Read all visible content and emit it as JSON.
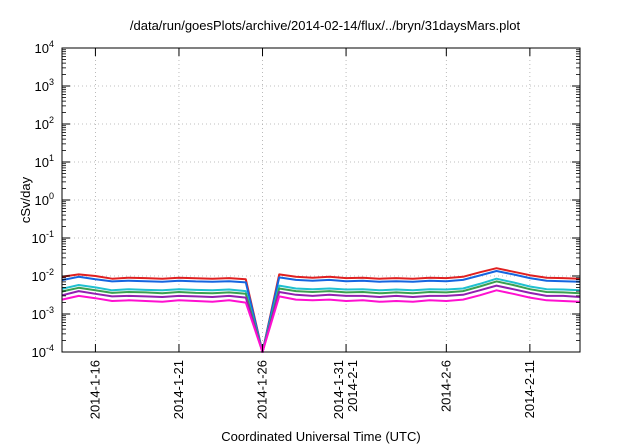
{
  "chart_data": {
    "type": "line",
    "title": "/data/run/goesPlots/archive/2014-02-14/flux/../bryn/31daysMars.plot",
    "xlabel": "Coordinated Universal Time (UTC)",
    "ylabel": "cSv/day",
    "yscale": "log",
    "ylim": [
      0.0001,
      10000
    ],
    "y_ticks": [
      {
        "value": 0.0001,
        "base": "10",
        "exp": "-4"
      },
      {
        "value": 0.001,
        "base": "10",
        "exp": "-3"
      },
      {
        "value": 0.01,
        "base": "10",
        "exp": "-2"
      },
      {
        "value": 0.1,
        "base": "10",
        "exp": "-1"
      },
      {
        "value": 1,
        "base": "10",
        "exp": "0"
      },
      {
        "value": 10,
        "base": "10",
        "exp": "1"
      },
      {
        "value": 100,
        "base": "10",
        "exp": "2"
      },
      {
        "value": 1000,
        "base": "10",
        "exp": "3"
      },
      {
        "value": 10000,
        "base": "10",
        "exp": "4"
      }
    ],
    "xlim": [
      "2014-01-14",
      "2014-02-14"
    ],
    "x_ticks": [
      {
        "date": "2014-01-16",
        "label": "2014-1-16"
      },
      {
        "date": "2014-01-21",
        "label": "2014-1-21"
      },
      {
        "date": "2014-01-26",
        "label": "2014-1-26"
      },
      {
        "date": "2014-01-31",
        "label": "2014-1-31\n2014-2-1"
      },
      {
        "date": "2014-02-06",
        "label": "2014-2-6"
      },
      {
        "date": "2014-02-11",
        "label": "2014-2-11"
      }
    ],
    "grid": true,
    "series": [
      {
        "color": "#e02020",
        "x": [
          "2014-01-14",
          "2014-01-15",
          "2014-01-16",
          "2014-01-17",
          "2014-01-18",
          "2014-01-19",
          "2014-01-20",
          "2014-01-21",
          "2014-01-22",
          "2014-01-23",
          "2014-01-24",
          "2014-01-25",
          "2014-01-26",
          "2014-01-27",
          "2014-01-28",
          "2014-01-29",
          "2014-01-30",
          "2014-01-31",
          "2014-02-01",
          "2014-02-02",
          "2014-02-03",
          "2014-02-04",
          "2014-02-05",
          "2014-02-06",
          "2014-02-07",
          "2014-02-08",
          "2014-02-09",
          "2014-02-10",
          "2014-02-11",
          "2014-02-12",
          "2014-02-13",
          "2014-02-14"
        ],
        "y": [
          0.0095,
          0.011,
          0.01,
          0.0085,
          0.009,
          0.0088,
          0.0085,
          0.009,
          0.0087,
          0.0085,
          0.0088,
          0.0082,
          0.0001,
          0.011,
          0.0095,
          0.009,
          0.0095,
          0.0088,
          0.009,
          0.0085,
          0.0088,
          0.0085,
          0.009,
          0.0088,
          0.0095,
          0.0125,
          0.016,
          0.013,
          0.0105,
          0.009,
          0.0088,
          0.0085
        ]
      },
      {
        "color": "#1565e0",
        "x": [
          "2014-01-14",
          "2014-01-15",
          "2014-01-16",
          "2014-01-17",
          "2014-01-18",
          "2014-01-19",
          "2014-01-20",
          "2014-01-21",
          "2014-01-22",
          "2014-01-23",
          "2014-01-24",
          "2014-01-25",
          "2014-01-26",
          "2014-01-27",
          "2014-01-28",
          "2014-01-29",
          "2014-01-30",
          "2014-01-31",
          "2014-02-01",
          "2014-02-02",
          "2014-02-03",
          "2014-02-04",
          "2014-02-05",
          "2014-02-06",
          "2014-02-07",
          "2014-02-08",
          "2014-02-09",
          "2014-02-10",
          "2014-02-11",
          "2014-02-12",
          "2014-02-13",
          "2014-02-14"
        ],
        "y": [
          0.0078,
          0.0095,
          0.0082,
          0.0072,
          0.0075,
          0.0073,
          0.0071,
          0.0075,
          0.0072,
          0.0071,
          0.0073,
          0.0068,
          0.0001,
          0.0092,
          0.0079,
          0.0075,
          0.0079,
          0.0073,
          0.0075,
          0.0071,
          0.0073,
          0.0071,
          0.0075,
          0.0073,
          0.0079,
          0.0103,
          0.0135,
          0.011,
          0.0088,
          0.0075,
          0.0073,
          0.0071
        ]
      },
      {
        "color": "#20c0d0",
        "x": [
          "2014-01-14",
          "2014-01-15",
          "2014-01-16",
          "2014-01-17",
          "2014-01-18",
          "2014-01-19",
          "2014-01-20",
          "2014-01-21",
          "2014-01-22",
          "2014-01-23",
          "2014-01-24",
          "2014-01-25",
          "2014-01-26",
          "2014-01-27",
          "2014-01-28",
          "2014-01-29",
          "2014-01-30",
          "2014-01-31",
          "2014-02-01",
          "2014-02-02",
          "2014-02-03",
          "2014-02-04",
          "2014-02-05",
          "2014-02-06",
          "2014-02-07",
          "2014-02-08",
          "2014-02-09",
          "2014-02-10",
          "2014-02-11",
          "2014-02-12",
          "2014-02-13",
          "2014-02-14"
        ],
        "y": [
          0.0046,
          0.0058,
          0.005,
          0.0042,
          0.0045,
          0.0043,
          0.0042,
          0.0045,
          0.0043,
          0.0042,
          0.0044,
          0.004,
          0.0001,
          0.0056,
          0.0047,
          0.0045,
          0.0047,
          0.0044,
          0.0045,
          0.0042,
          0.0044,
          0.0042,
          0.0045,
          0.0044,
          0.0047,
          0.0062,
          0.0085,
          0.0068,
          0.0053,
          0.0045,
          0.0044,
          0.0042
        ]
      },
      {
        "color": "#3aa050",
        "x": [
          "2014-01-14",
          "2014-01-15",
          "2014-01-16",
          "2014-01-17",
          "2014-01-18",
          "2014-01-19",
          "2014-01-20",
          "2014-01-21",
          "2014-01-22",
          "2014-01-23",
          "2014-01-24",
          "2014-01-25",
          "2014-01-26",
          "2014-01-27",
          "2014-01-28",
          "2014-01-29",
          "2014-01-30",
          "2014-01-31",
          "2014-02-01",
          "2014-02-02",
          "2014-02-03",
          "2014-02-04",
          "2014-02-05",
          "2014-02-06",
          "2014-02-07",
          "2014-02-08",
          "2014-02-09",
          "2014-02-10",
          "2014-02-11",
          "2014-02-12",
          "2014-02-13",
          "2014-02-14"
        ],
        "y": [
          0.0039,
          0.0049,
          0.0042,
          0.0036,
          0.0038,
          0.0037,
          0.0035,
          0.0038,
          0.0036,
          0.0035,
          0.0037,
          0.0034,
          0.0001,
          0.0047,
          0.004,
          0.0038,
          0.004,
          0.0037,
          0.0038,
          0.0035,
          0.0037,
          0.0035,
          0.0038,
          0.0037,
          0.004,
          0.0053,
          0.0072,
          0.0058,
          0.0045,
          0.0038,
          0.0037,
          0.0035
        ]
      },
      {
        "color": "#9020b0",
        "x": [
          "2014-01-14",
          "2014-01-15",
          "2014-01-16",
          "2014-01-17",
          "2014-01-18",
          "2014-01-19",
          "2014-01-20",
          "2014-01-21",
          "2014-01-22",
          "2014-01-23",
          "2014-01-24",
          "2014-01-25",
          "2014-01-26",
          "2014-01-27",
          "2014-01-28",
          "2014-01-29",
          "2014-01-30",
          "2014-01-31",
          "2014-02-01",
          "2014-02-02",
          "2014-02-03",
          "2014-02-04",
          "2014-02-05",
          "2014-02-06",
          "2014-02-07",
          "2014-02-08",
          "2014-02-09",
          "2014-02-10",
          "2014-02-11",
          "2014-02-12",
          "2014-02-13",
          "2014-02-14"
        ],
        "y": [
          0.0031,
          0.004,
          0.0034,
          0.0029,
          0.003,
          0.0029,
          0.0028,
          0.003,
          0.0029,
          0.0028,
          0.003,
          0.0027,
          0.0001,
          0.0038,
          0.0032,
          0.003,
          0.0032,
          0.003,
          0.003,
          0.0028,
          0.003,
          0.0028,
          0.003,
          0.003,
          0.0032,
          0.0042,
          0.0056,
          0.0045,
          0.0036,
          0.003,
          0.003,
          0.0028
        ]
      },
      {
        "color": "#ff10d0",
        "x": [
          "2014-01-14",
          "2014-01-15",
          "2014-01-16",
          "2014-01-17",
          "2014-01-18",
          "2014-01-19",
          "2014-01-20",
          "2014-01-21",
          "2014-01-22",
          "2014-01-23",
          "2014-01-24",
          "2014-01-25",
          "2014-01-26",
          "2014-01-27",
          "2014-01-28",
          "2014-01-29",
          "2014-01-30",
          "2014-01-31",
          "2014-02-01",
          "2014-02-02",
          "2014-02-03",
          "2014-02-04",
          "2014-02-05",
          "2014-02-06",
          "2014-02-07",
          "2014-02-08",
          "2014-02-09",
          "2014-02-10",
          "2014-02-11",
          "2014-02-12",
          "2014-02-13",
          "2014-02-14"
        ],
        "y": [
          0.0024,
          0.003,
          0.0026,
          0.0022,
          0.0023,
          0.0022,
          0.0021,
          0.0023,
          0.0022,
          0.0021,
          0.0023,
          0.002,
          0.0001,
          0.0029,
          0.0024,
          0.0023,
          0.0024,
          0.0022,
          0.0023,
          0.0021,
          0.0022,
          0.0021,
          0.0023,
          0.0022,
          0.0024,
          0.0031,
          0.0042,
          0.0034,
          0.0027,
          0.0023,
          0.0022,
          0.0021
        ]
      }
    ]
  }
}
